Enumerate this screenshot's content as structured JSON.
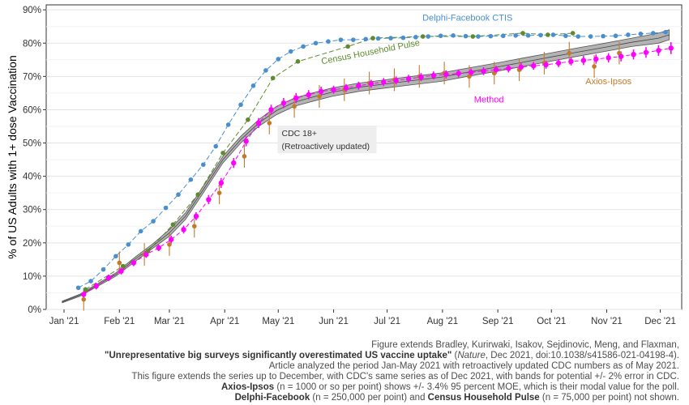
{
  "chart_data": {
    "type": "line",
    "ylabel": "% of US Adults with 1+ dose Vaccination",
    "xlabel": "",
    "xlim": [
      "2020-12-22",
      "2021-12-13"
    ],
    "ylim": [
      0,
      0.915
    ],
    "y_ticks": [
      0,
      0.1,
      0.2,
      0.3,
      0.4,
      0.5,
      0.6,
      0.7,
      0.8,
      0.9
    ],
    "y_tick_labels": [
      "0%",
      "10%",
      "20%",
      "30%",
      "40%",
      "50%",
      "60%",
      "70%",
      "80%",
      "90%"
    ],
    "x_ticks": [
      "2021-01-01",
      "2021-02-01",
      "2021-03-01",
      "2021-04-01",
      "2021-05-01",
      "2021-06-01",
      "2021-07-01",
      "2021-08-01",
      "2021-09-01",
      "2021-10-01",
      "2021-11-01",
      "2021-12-01"
    ],
    "x_tick_labels": [
      "Jan '21",
      "Feb '21",
      "Mar '21",
      "Apr '21",
      "May '21",
      "Jun '21",
      "Jul '21",
      "Aug '21",
      "Sep '21",
      "Oct '21",
      "Nov '21",
      "Dec '21"
    ],
    "grid": true,
    "series": [
      {
        "name": "CDC 18+",
        "kind": "band",
        "color": "#555555",
        "fill": "#b3b3b3",
        "x": [
          "2020-12-31",
          "2021-01-10",
          "2021-01-20",
          "2021-01-30",
          "2021-02-10",
          "2021-02-20",
          "2021-03-01",
          "2021-03-10",
          "2021-03-20",
          "2021-03-31",
          "2021-04-10",
          "2021-04-20",
          "2021-04-30",
          "2021-05-10",
          "2021-05-20",
          "2021-05-31",
          "2021-06-15",
          "2021-06-30",
          "2021-07-15",
          "2021-07-31",
          "2021-08-15",
          "2021-08-31",
          "2021-09-15",
          "2021-09-30",
          "2021-10-15",
          "2021-10-31",
          "2021-11-15",
          "2021-11-30",
          "2021-12-06"
        ],
        "lower": [
          0.02,
          0.04,
          0.07,
          0.1,
          0.145,
          0.185,
          0.22,
          0.27,
          0.35,
          0.44,
          0.5,
          0.55,
          0.585,
          0.61,
          0.625,
          0.64,
          0.655,
          0.665,
          0.675,
          0.685,
          0.7,
          0.715,
          0.73,
          0.745,
          0.76,
          0.775,
          0.79,
          0.8,
          0.81
        ],
        "upper": [
          0.025,
          0.046,
          0.078,
          0.11,
          0.158,
          0.198,
          0.24,
          0.29,
          0.37,
          0.46,
          0.52,
          0.57,
          0.61,
          0.635,
          0.65,
          0.665,
          0.68,
          0.69,
          0.7,
          0.71,
          0.725,
          0.74,
          0.755,
          0.77,
          0.785,
          0.8,
          0.815,
          0.83,
          0.84
        ]
      },
      {
        "name": "Delphi-Facebook CTIS",
        "kind": "points_line",
        "color": "#4a8fcd",
        "x": [
          "2021-01-09",
          "2021-01-16",
          "2021-01-23",
          "2021-01-30",
          "2021-02-06",
          "2021-02-13",
          "2021-02-20",
          "2021-02-27",
          "2021-03-06",
          "2021-03-13",
          "2021-03-20",
          "2021-03-27",
          "2021-04-03",
          "2021-04-10",
          "2021-04-17",
          "2021-04-24",
          "2021-05-01",
          "2021-05-08",
          "2021-05-15",
          "2021-05-22",
          "2021-05-29",
          "2021-06-05",
          "2021-06-12",
          "2021-06-19",
          "2021-06-26",
          "2021-07-03",
          "2021-07-10",
          "2021-07-17",
          "2021-07-24",
          "2021-07-31",
          "2021-08-07",
          "2021-08-14",
          "2021-08-21",
          "2021-08-28",
          "2021-09-04",
          "2021-09-11",
          "2021-09-18",
          "2021-09-25",
          "2021-10-02",
          "2021-10-09",
          "2021-10-16",
          "2021-10-23",
          "2021-10-30",
          "2021-11-06",
          "2021-11-13",
          "2021-11-20",
          "2021-11-27",
          "2021-12-04"
        ],
        "y": [
          0.065,
          0.085,
          0.12,
          0.16,
          0.195,
          0.235,
          0.265,
          0.305,
          0.345,
          0.39,
          0.435,
          0.49,
          0.555,
          0.615,
          0.672,
          0.718,
          0.752,
          0.775,
          0.79,
          0.8,
          0.805,
          0.81,
          0.81,
          0.812,
          0.814,
          0.815,
          0.816,
          0.818,
          0.82,
          0.822,
          0.823,
          0.821,
          0.82,
          0.821,
          0.822,
          0.823,
          0.823,
          0.824,
          0.825,
          0.822,
          0.82,
          0.82,
          0.821,
          0.822,
          0.825,
          0.828,
          0.83,
          0.833
        ]
      },
      {
        "name": "Census Household Pulse",
        "kind": "points_line",
        "color": "#5f8a2f",
        "x": [
          "2021-01-13",
          "2021-02-03",
          "2021-02-17",
          "2021-03-03",
          "2021-03-17",
          "2021-03-31",
          "2021-04-14",
          "2021-04-28",
          "2021-05-12",
          "2021-06-09",
          "2021-06-23",
          "2021-07-21",
          "2021-08-18",
          "2021-09-15",
          "2021-09-29",
          "2021-10-13"
        ],
        "y": [
          0.06,
          0.13,
          0.175,
          0.255,
          0.345,
          0.47,
          0.57,
          0.695,
          0.745,
          0.79,
          0.815,
          0.82,
          0.82,
          0.83,
          0.825,
          0.83
        ]
      },
      {
        "name": "Axios-Ipsos",
        "kind": "points_errorbar",
        "color": "#c27b2c",
        "moe": 0.034,
        "x": [
          "2021-01-12",
          "2021-02-01",
          "2021-02-15",
          "2021-03-01",
          "2021-03-15",
          "2021-03-29",
          "2021-04-12",
          "2021-04-26",
          "2021-05-10",
          "2021-05-24",
          "2021-06-07",
          "2021-06-21",
          "2021-07-05",
          "2021-07-19",
          "2021-08-02",
          "2021-08-16",
          "2021-08-30",
          "2021-09-13",
          "2021-09-27",
          "2021-10-11",
          "2021-10-25",
          "2021-11-08"
        ],
        "y": [
          0.03,
          0.14,
          0.165,
          0.195,
          0.25,
          0.35,
          0.46,
          0.56,
          0.61,
          0.64,
          0.66,
          0.68,
          0.69,
          0.7,
          0.71,
          0.7,
          0.71,
          0.72,
          0.74,
          0.77,
          0.73,
          0.77
        ]
      },
      {
        "name": "Method",
        "kind": "points_errorbar",
        "color": "#ff00ff",
        "x": [
          "2021-01-12",
          "2021-01-19",
          "2021-01-26",
          "2021-02-02",
          "2021-02-09",
          "2021-02-16",
          "2021-02-23",
          "2021-03-02",
          "2021-03-09",
          "2021-03-16",
          "2021-03-23",
          "2021-03-30",
          "2021-04-06",
          "2021-04-13",
          "2021-04-20",
          "2021-04-27",
          "2021-05-04",
          "2021-05-11",
          "2021-05-18",
          "2021-05-25",
          "2021-06-01",
          "2021-06-08",
          "2021-06-15",
          "2021-06-22",
          "2021-06-29",
          "2021-07-06",
          "2021-07-13",
          "2021-07-20",
          "2021-07-27",
          "2021-08-03",
          "2021-08-10",
          "2021-08-17",
          "2021-08-24",
          "2021-08-31",
          "2021-09-07",
          "2021-09-14",
          "2021-09-21",
          "2021-09-28",
          "2021-10-05",
          "2021-10-12",
          "2021-10-19",
          "2021-10-26",
          "2021-11-02",
          "2021-11-09",
          "2021-11-16",
          "2021-11-23",
          "2021-11-30",
          "2021-12-07"
        ],
        "y": [
          0.045,
          0.07,
          0.095,
          0.115,
          0.14,
          0.165,
          0.185,
          0.21,
          0.24,
          0.28,
          0.33,
          0.38,
          0.44,
          0.505,
          0.56,
          0.6,
          0.62,
          0.635,
          0.645,
          0.655,
          0.66,
          0.665,
          0.672,
          0.678,
          0.683,
          0.688,
          0.693,
          0.698,
          0.703,
          0.706,
          0.709,
          0.712,
          0.716,
          0.72,
          0.724,
          0.728,
          0.732,
          0.735,
          0.74,
          0.745,
          0.748,
          0.752,
          0.756,
          0.76,
          0.766,
          0.772,
          0.778,
          0.785
        ],
        "err": [
          0.01,
          0.01,
          0.01,
          0.01,
          0.01,
          0.01,
          0.01,
          0.012,
          0.012,
          0.012,
          0.014,
          0.015,
          0.015,
          0.015,
          0.015,
          0.015,
          0.015,
          0.015,
          0.014,
          0.014,
          0.012,
          0.012,
          0.012,
          0.012,
          0.012,
          0.012,
          0.012,
          0.012,
          0.012,
          0.012,
          0.012,
          0.012,
          0.012,
          0.012,
          0.012,
          0.012,
          0.012,
          0.012,
          0.012,
          0.012,
          0.014,
          0.014,
          0.014,
          0.015,
          0.015,
          0.016,
          0.016,
          0.018
        ]
      }
    ],
    "annotations": [
      {
        "text": "Delphi-Facebook CTIS",
        "x": "2021-08-15",
        "y": 0.868,
        "color": "#4a8fcd"
      },
      {
        "text": "Census Household Pulse",
        "x": "2021-06-22",
        "y": 0.765,
        "color": "#5f8a2f",
        "rotate": -11
      },
      {
        "text": "Axios-Ipsos",
        "x": "2021-11-02",
        "y": 0.676,
        "color": "#c27b2c"
      },
      {
        "text": "Method",
        "x": "2021-08-27",
        "y": 0.622,
        "color": "#ff00ff"
      },
      {
        "text": "CDC 18+",
        "text2": "(Retroactively updated)",
        "x": "2021-05-02",
        "y": 0.545,
        "color": "#333333",
        "box": "#eeeeee"
      }
    ]
  },
  "caption": {
    "line1": "Figure extends Bradley, Kurirwaki, Isakov, Sejdinovic, Meng, and Flaxman,",
    "line2_title": "\"Unrepresentative big surveys significantly overestimated US vaccine uptake\"",
    "line2_journal": "Nature",
    "line2_rest": ", Dec 2021, doi:10.1038/s41586-021-04198-4).",
    "line2_open": " (",
    "line3": "Article analyzed the period Jan-May 2021 with retroactively updated CDC numbers as of May 2021.",
    "line4": "This figure extends the series up to December, with CDC's same series as of Dec 2021, with bands for potential +/- 2% error in CDC.",
    "line5_bold": "Axios-Ipsos",
    "line5_rest": " (n = 1000 or so per point) shows +/- 3.4% 95 percent MOE, which is their modal value for the poll.",
    "line6_bold1": "Delphi-Facebook",
    "line6_mid": " (n = 250,000 per point) and ",
    "line6_bold2": "Census Household Pulse",
    "line6_rest": " (n = 75,000 per point) not shown."
  }
}
